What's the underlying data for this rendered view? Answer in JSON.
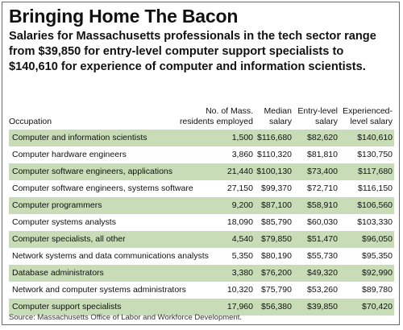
{
  "title": "Bringing Home The Bacon",
  "subtitle": "Salaries for Massachusetts professionals in the tech sector range from $39,850 for entry-level computer support specialists to $140,610 for experience of computer and information scientists.",
  "columns": {
    "occupation": "Occupation",
    "num_line1": "No. of Mass.",
    "num_line2": "residents employed",
    "median_line1": "Median",
    "median_line2": "salary",
    "entry_line1": "Entry-level",
    "entry_line2": "salary",
    "exp_line1": "Experienced-",
    "exp_line2": "level salary"
  },
  "rows": [
    {
      "occupation": "Computer and information scientists",
      "employed": "1,500",
      "median": "$116,680",
      "entry": "$82,620",
      "experienced": "$140,610"
    },
    {
      "occupation": "Computer hardware engineers",
      "employed": "3,860",
      "median": "$110,320",
      "entry": "$81,810",
      "experienced": "$130,750"
    },
    {
      "occupation": "Computer software engineers, applications",
      "employed": "21,440",
      "median": "$100,130",
      "entry": "$73,400",
      "experienced": "$117,680"
    },
    {
      "occupation": "Computer software engineers, systems software",
      "employed": "27,150",
      "median": "$99,370",
      "entry": "$72,710",
      "experienced": "$116,150"
    },
    {
      "occupation": "Computer programmers",
      "employed": "9,200",
      "median": "$87,100",
      "entry": "$58,910",
      "experienced": "$106,560"
    },
    {
      "occupation": "Computer systems analysts",
      "employed": "18,090",
      "median": "$85,790",
      "entry": "$60,030",
      "experienced": "$103,330"
    },
    {
      "occupation": "Computer specialists, all other",
      "employed": "4,540",
      "median": "$79,850",
      "entry": "$51,470",
      "experienced": "$96,050"
    },
    {
      "occupation": "Network systems and data communications analysts",
      "employed": "5,350",
      "median": "$80,190",
      "entry": "$55,730",
      "experienced": "$95,350"
    },
    {
      "occupation": "Database administrators",
      "employed": "3,380",
      "median": "$76,200",
      "entry": "$49,320",
      "experienced": "$92,990"
    },
    {
      "occupation": "Network and computer systems administrators",
      "employed": "10,320",
      "median": "$75,790",
      "entry": "$53,260",
      "experienced": "$89,780"
    },
    {
      "occupation": "Computer support specialists",
      "employed": "17,960",
      "median": "$56,380",
      "entry": "$39,850",
      "experienced": "$70,420"
    }
  ],
  "source": "Source: Massachusetts Office of Labor and Workforce Development.",
  "colors": {
    "shade": "#c8dcb8",
    "border": "#6a6a6a"
  }
}
